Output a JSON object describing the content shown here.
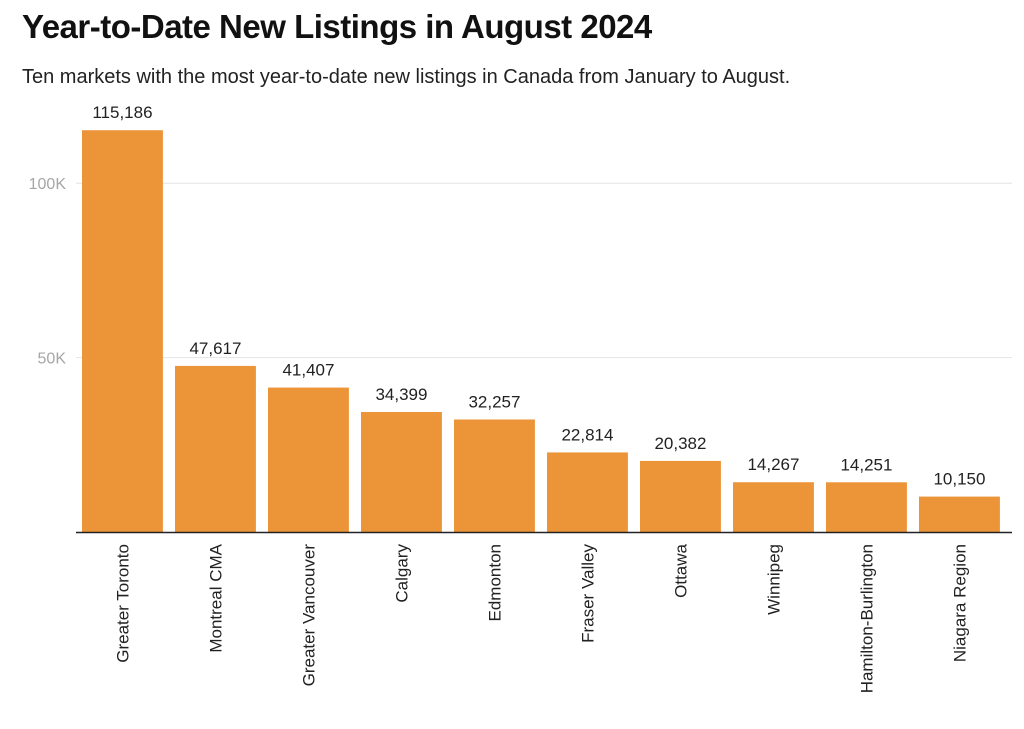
{
  "title": "Year-to-Date New Listings in August 2024",
  "subtitle": "Ten markets with the most year-to-date new listings in Canada from January to August.",
  "chart_data": {
    "type": "bar",
    "title": "Year-to-Date New Listings in August 2024",
    "subtitle": "Ten markets with the most year-to-date new listings in Canada from January to August.",
    "xlabel": "",
    "ylabel": "",
    "categories": [
      "Greater Toronto",
      "Montreal CMA",
      "Greater Vancouver",
      "Calgary",
      "Edmonton",
      "Fraser Valley",
      "Ottawa",
      "Winnipeg",
      "Hamilton-Burlington",
      "Niagara Region"
    ],
    "values": [
      115186,
      47617,
      41407,
      34399,
      32257,
      22814,
      20382,
      14267,
      14251,
      10150
    ],
    "value_labels": [
      "115,186",
      "47,617",
      "41,407",
      "34,399",
      "32,257",
      "22,814",
      "20,382",
      "14,267",
      "14,251",
      "10,150"
    ],
    "ylim": [
      0,
      125000
    ],
    "yticks": [
      50000,
      100000
    ],
    "ytick_labels": [
      "50K",
      "100K"
    ],
    "grid": true,
    "legend": "none",
    "colors": {
      "bar": "#ec9438",
      "grid": "#e4e4e4",
      "axis": "#222222",
      "tick_text": "#a6a6a6"
    }
  }
}
